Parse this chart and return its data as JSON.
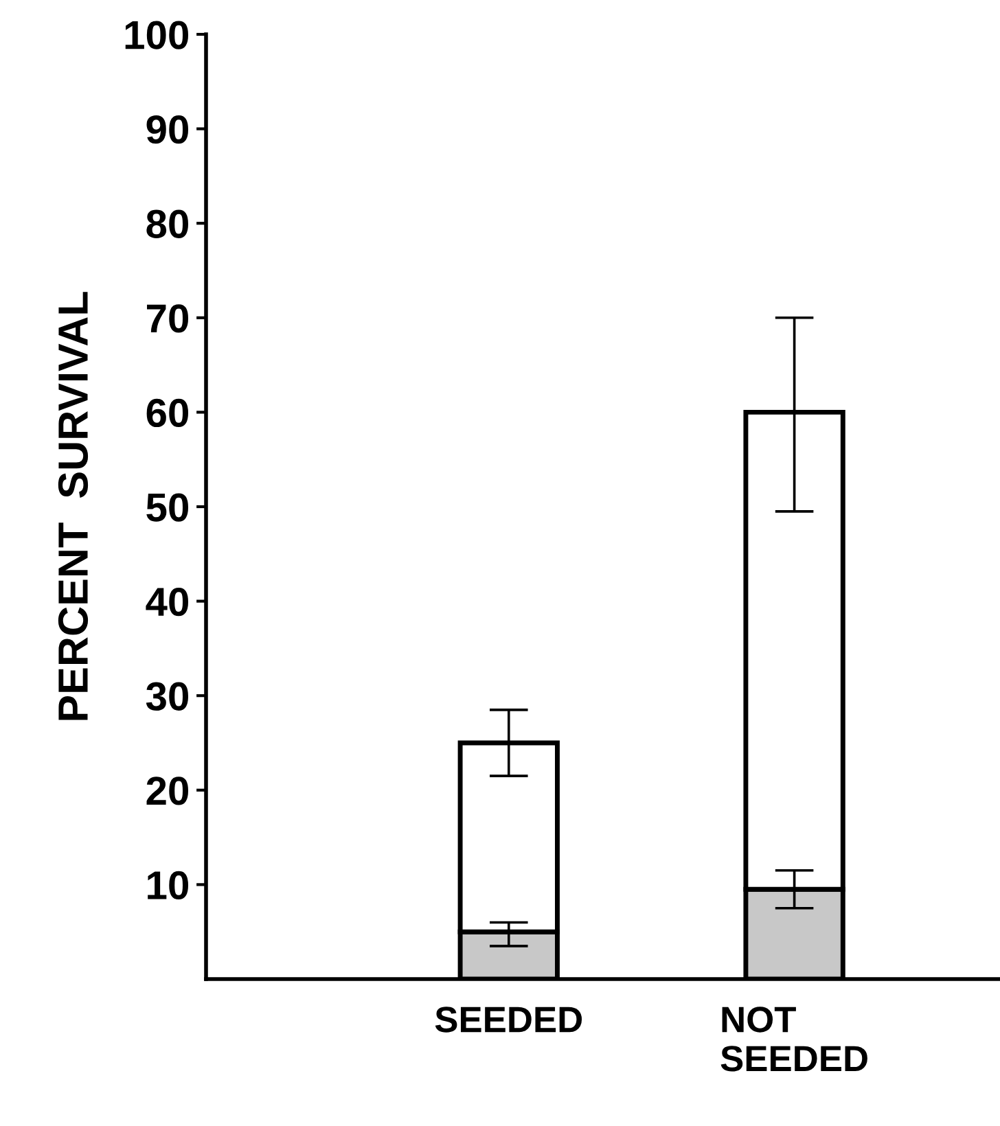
{
  "chart_data": {
    "type": "bar",
    "ylabel": "PERCENT  SURVIVAL",
    "categories": [
      "SEEDED",
      "NOT\nSEEDED"
    ],
    "stacked": true,
    "series": [
      {
        "color": "#c8c8c8",
        "values": [
          5,
          9.5
        ],
        "errors": [
          [
            3.5,
            6
          ],
          [
            7.5,
            11.5
          ]
        ]
      },
      {
        "color": "#ffffff",
        "values": [
          20,
          50.5
        ],
        "errors": [
          [
            21.5,
            28.5
          ],
          [
            49.5,
            70
          ]
        ]
      }
    ],
    "ylim": [
      0,
      100
    ],
    "yticks": [
      10,
      20,
      30,
      40,
      50,
      60,
      70,
      80,
      90,
      100
    ],
    "grid": false,
    "legend": false
  }
}
